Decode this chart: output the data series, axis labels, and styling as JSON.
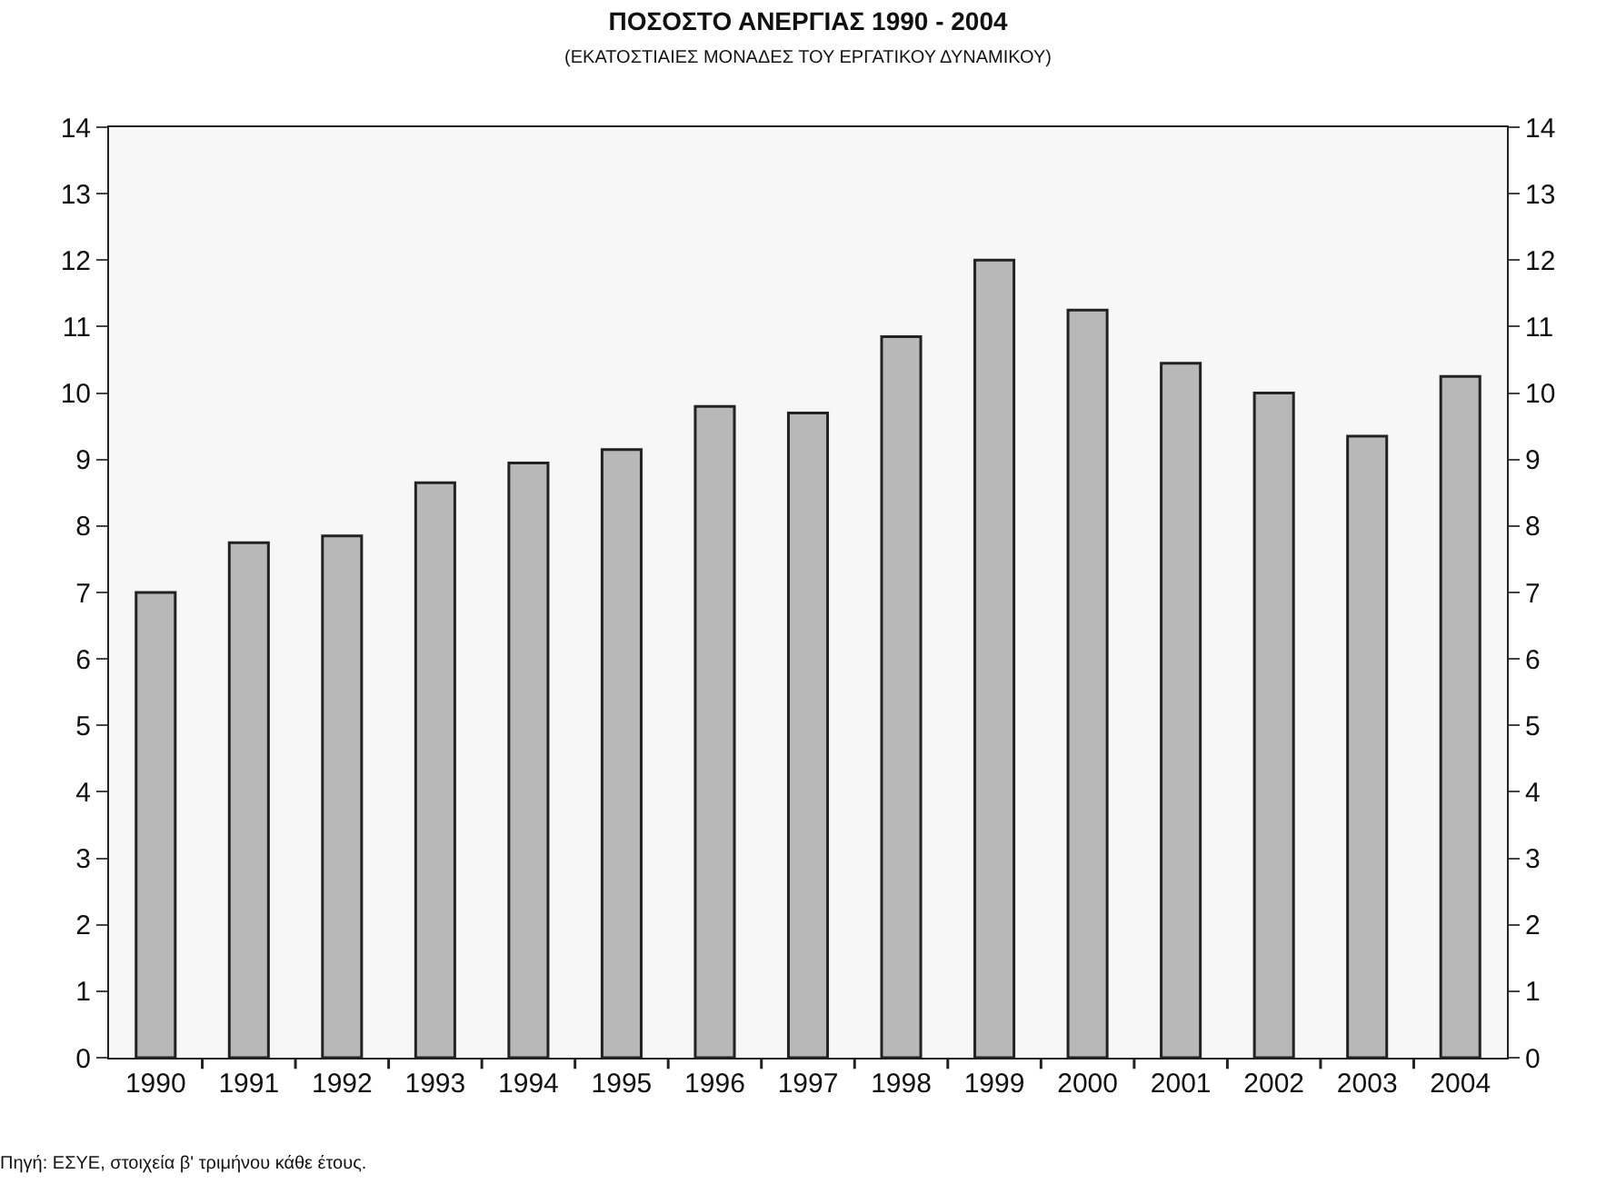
{
  "chart_data": {
    "type": "bar",
    "title": "ΠΟΣΟΣΤΟ ΑΝΕΡΓΙΑΣ 1990 - 2004",
    "subtitle": "(ΕΚΑΤΟΣΤΙΑΙΕΣ ΜΟΝΑΔΕΣ ΤΟΥ ΕΡΓΑΤΙΚΟΥ ΔΥΝΑΜΙΚΟΥ)",
    "categories": [
      "1990",
      "1991",
      "1992",
      "1993",
      "1994",
      "1995",
      "1996",
      "1997",
      "1998",
      "1999",
      "2000",
      "2001",
      "2002",
      "2003",
      "2004"
    ],
    "values": [
      7.0,
      7.75,
      7.85,
      8.65,
      8.95,
      9.15,
      9.8,
      9.7,
      10.85,
      12.0,
      11.25,
      10.45,
      10.0,
      9.35,
      10.25
    ],
    "color": "#b8b8b8",
    "ylim": [
      0,
      14
    ],
    "yticks": [
      0,
      1,
      2,
      3,
      4,
      5,
      6,
      7,
      8,
      9,
      10,
      11,
      12,
      13,
      14
    ],
    "y2lim": [
      0,
      14
    ],
    "y2ticks": [
      0,
      1,
      2,
      3,
      4,
      5,
      6,
      7,
      8,
      9,
      10,
      11,
      12,
      13,
      14
    ],
    "grid": false,
    "legend": false,
    "annotations": [
      "Πηγή: ΕΣΥΕ, στοιχεία β' τριμήνου κάθε έτους."
    ]
  }
}
